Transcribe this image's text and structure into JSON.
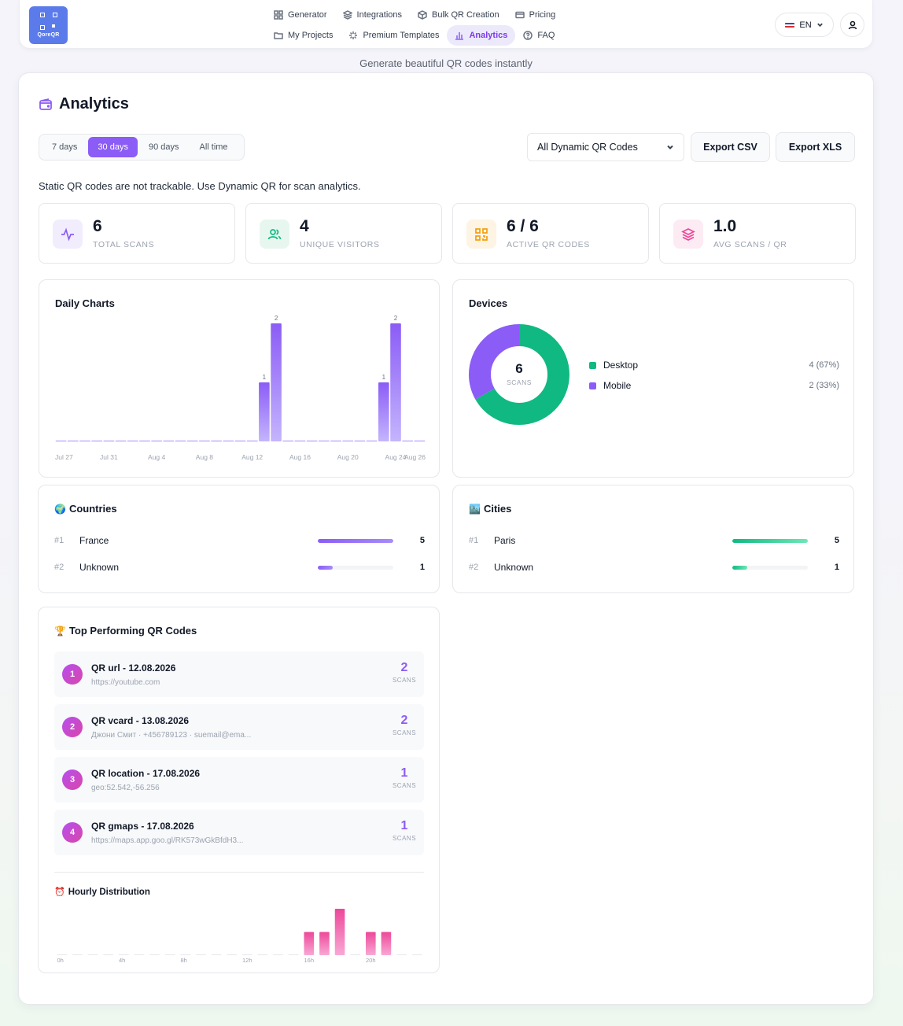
{
  "app": {
    "brand": "QoreQR",
    "tagline": "Generate beautiful QR codes instantly"
  },
  "nav": {
    "row1": [
      {
        "label": "Generator",
        "icon": "grid-icon"
      },
      {
        "label": "Integrations",
        "icon": "layers-icon"
      },
      {
        "label": "Bulk QR Creation",
        "icon": "box-icon"
      },
      {
        "label": "Pricing",
        "icon": "card-icon"
      }
    ],
    "row2": [
      {
        "label": "My Projects",
        "icon": "folder-icon"
      },
      {
        "label": "Premium Templates",
        "icon": "sparkle-icon"
      },
      {
        "label": "Analytics",
        "icon": "bar-chart-icon",
        "active": true
      },
      {
        "label": "FAQ",
        "icon": "help-circle-icon"
      }
    ],
    "language": "EN"
  },
  "page": {
    "title": "Analytics",
    "ranges": [
      "7 days",
      "30 days",
      "90 days",
      "All time"
    ],
    "active_range": "30 days",
    "qr_filter": "All Dynamic QR Codes",
    "export_csv": "Export CSV",
    "export_xls": "Export XLS",
    "notice": "Static QR codes are not trackable. Use Dynamic QR for scan analytics."
  },
  "stats": [
    {
      "value": "6",
      "label": "TOTAL SCANS",
      "color": "#8b5cf6",
      "bg": "#f1edfd",
      "icon": "activity-icon"
    },
    {
      "value": "4",
      "label": "UNIQUE VISITORS",
      "color": "#10b981",
      "bg": "#e7f7f0",
      "icon": "users-icon"
    },
    {
      "value": "6 / 6",
      "label": "ACTIVE QR CODES",
      "color": "#f59e0b",
      "bg": "#fdf4e3",
      "icon": "qr-icon"
    },
    {
      "value": "1.0",
      "label": "AVG SCANS / QR",
      "color": "#ec4899",
      "bg": "#fdebf3",
      "icon": "stack-icon"
    }
  ],
  "daily": {
    "title": "Daily Charts",
    "tick_labels": [
      "Jul 27",
      "Jul 31",
      "Aug 4",
      "Aug 8",
      "Aug 12",
      "Aug 16",
      "Aug 20",
      "Aug 24",
      "Aug 26"
    ]
  },
  "devices": {
    "title": "Devices",
    "total": "6",
    "total_label": "SCANS",
    "items": [
      {
        "name": "Desktop",
        "value": 4,
        "text": "4 (67%)",
        "color": "#10b981"
      },
      {
        "name": "Mobile",
        "value": 2,
        "text": "2 (33%)",
        "color": "#8b5cf6"
      }
    ]
  },
  "countries": {
    "title": "Countries",
    "emoji": "🌍",
    "items": [
      {
        "rank": "#1",
        "name": "France",
        "count": "5",
        "fraction": 1.0
      },
      {
        "rank": "#2",
        "name": "Unknown",
        "count": "1",
        "fraction": 0.2
      }
    ]
  },
  "cities": {
    "title": "Cities",
    "emoji": "🏙️",
    "items": [
      {
        "rank": "#1",
        "name": "Paris",
        "count": "5",
        "fraction": 1.0
      },
      {
        "rank": "#2",
        "name": "Unknown",
        "count": "1",
        "fraction": 0.2
      }
    ]
  },
  "top_qr": {
    "title": "Top Performing QR Codes",
    "emoji": "🏆",
    "scans_label": "SCANS",
    "items": [
      {
        "rank": "1",
        "name": "QR url - 12.08.2026",
        "sub": "https://youtube.com",
        "scans": "2"
      },
      {
        "rank": "2",
        "name": "QR vcard - 13.08.2026",
        "sub": "Джони Смит · +456789123 · suemail@ema...",
        "scans": "2"
      },
      {
        "rank": "3",
        "name": "QR location - 17.08.2026",
        "sub": "geo:52.542,-56.256",
        "scans": "1"
      },
      {
        "rank": "4",
        "name": "QR gmaps - 17.08.2026",
        "sub": "https://maps.app.goo.gl/RK573wGkBfdH3...",
        "scans": "1"
      }
    ]
  },
  "hourly": {
    "title": "Hourly Distribution",
    "emoji": "⏰",
    "tick_labels": [
      "0h",
      "4h",
      "8h",
      "12h",
      "16h",
      "20h"
    ]
  },
  "chart_data": [
    {
      "type": "bar",
      "title": "Daily Charts",
      "x": [
        "Jul 27",
        "Jul 28",
        "Jul 29",
        "Jul 30",
        "Jul 31",
        "Aug 1",
        "Aug 2",
        "Aug 3",
        "Aug 4",
        "Aug 5",
        "Aug 6",
        "Aug 7",
        "Aug 8",
        "Aug 9",
        "Aug 10",
        "Aug 11",
        "Aug 12",
        "Aug 13",
        "Aug 14",
        "Aug 15",
        "Aug 16",
        "Aug 17",
        "Aug 18",
        "Aug 19",
        "Aug 20",
        "Aug 21",
        "Aug 22",
        "Aug 23",
        "Aug 24",
        "Aug 25",
        "Aug 26"
      ],
      "values": [
        0,
        0,
        0,
        0,
        0,
        0,
        0,
        0,
        0,
        0,
        0,
        0,
        0,
        0,
        0,
        0,
        0,
        1,
        2,
        0,
        0,
        0,
        0,
        0,
        0,
        0,
        0,
        1,
        2,
        0,
        0
      ],
      "ylim": [
        0,
        2
      ]
    },
    {
      "type": "pie",
      "title": "Devices",
      "categories": [
        "Desktop",
        "Mobile"
      ],
      "values": [
        4,
        2
      ]
    },
    {
      "type": "bar",
      "title": "Hourly Distribution",
      "x": [
        "0",
        "1",
        "2",
        "3",
        "4",
        "5",
        "6",
        "7",
        "8",
        "9",
        "10",
        "11",
        "12",
        "13",
        "14",
        "15",
        "16",
        "17",
        "18",
        "19",
        "20",
        "21",
        "22",
        "23"
      ],
      "values": [
        0,
        0,
        0,
        0,
        0,
        0,
        0,
        0,
        0,
        0,
        0,
        0,
        0,
        0,
        0,
        0,
        1,
        1,
        2,
        0,
        1,
        1,
        0,
        0
      ],
      "ylim": [
        0,
        2
      ]
    }
  ]
}
